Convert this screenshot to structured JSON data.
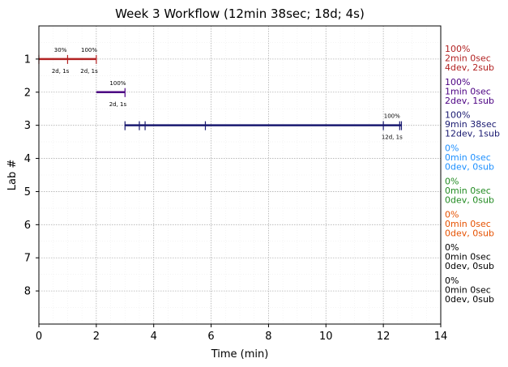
{
  "chart_data": {
    "type": "timeline",
    "title": "Week 3 Workflow (12min 38sec; 18d; 4s)",
    "xlabel": "Time (min)",
    "ylabel": "Lab #",
    "xlim": [
      0,
      14
    ],
    "ylim": [
      9,
      0
    ],
    "x_ticks": [
      "0",
      "2",
      "4",
      "6",
      "8",
      "10",
      "12",
      "14"
    ],
    "y_ticks": [
      "1",
      "2",
      "3",
      "4",
      "5",
      "6",
      "7",
      "8"
    ],
    "grid": true,
    "labs": [
      {
        "lab": 1,
        "color": "#b22222",
        "start": 0,
        "end": 2.0,
        "ticks": [
          0,
          1.0,
          2.0
        ],
        "annotations": [
          {
            "x": 0.75,
            "pct": "30%",
            "stat": "2d, 1s"
          },
          {
            "x": 1.75,
            "pct": "100%",
            "stat": "2d, 1s"
          }
        ],
        "summary": [
          "100%",
          "2min 0sec",
          "4dev, 2sub"
        ]
      },
      {
        "lab": 2,
        "color": "#4b0082",
        "start": 2.0,
        "end": 3.0,
        "ticks": [
          3.0
        ],
        "annotations": [
          {
            "x": 2.75,
            "pct": "100%",
            "stat": "2d, 1s"
          }
        ],
        "summary": [
          "100%",
          "1min 0sec",
          "2dev, 1sub"
        ]
      },
      {
        "lab": 3,
        "color": "#191970",
        "start": 3.0,
        "end": 12.63,
        "ticks": [
          3.0,
          3.5,
          3.7,
          5.8,
          12.0,
          12.57,
          12.63
        ],
        "annotations": [
          {
            "x": 12.3,
            "pct": "100%",
            "stat": "12d, 1s"
          }
        ],
        "summary": [
          "100%",
          "9min 38sec",
          "12dev, 1sub"
        ]
      },
      {
        "lab": 4,
        "color": "#1e90ff",
        "summary": [
          "0%",
          "0min 0sec",
          "0dev, 0sub"
        ]
      },
      {
        "lab": 5,
        "color": "#228b22",
        "summary": [
          "0%",
          "0min 0sec",
          "0dev, 0sub"
        ]
      },
      {
        "lab": 6,
        "color": "#e65100",
        "summary": [
          "0%",
          "0min 0sec",
          "0dev, 0sub"
        ]
      },
      {
        "lab": 7,
        "color": "#000000",
        "summary": [
          "0%",
          "0min 0sec",
          "0dev, 0sub"
        ]
      },
      {
        "lab": 8,
        "color": "#000000",
        "summary": [
          "0%",
          "0min 0sec",
          "0dev, 0sub"
        ]
      }
    ]
  }
}
